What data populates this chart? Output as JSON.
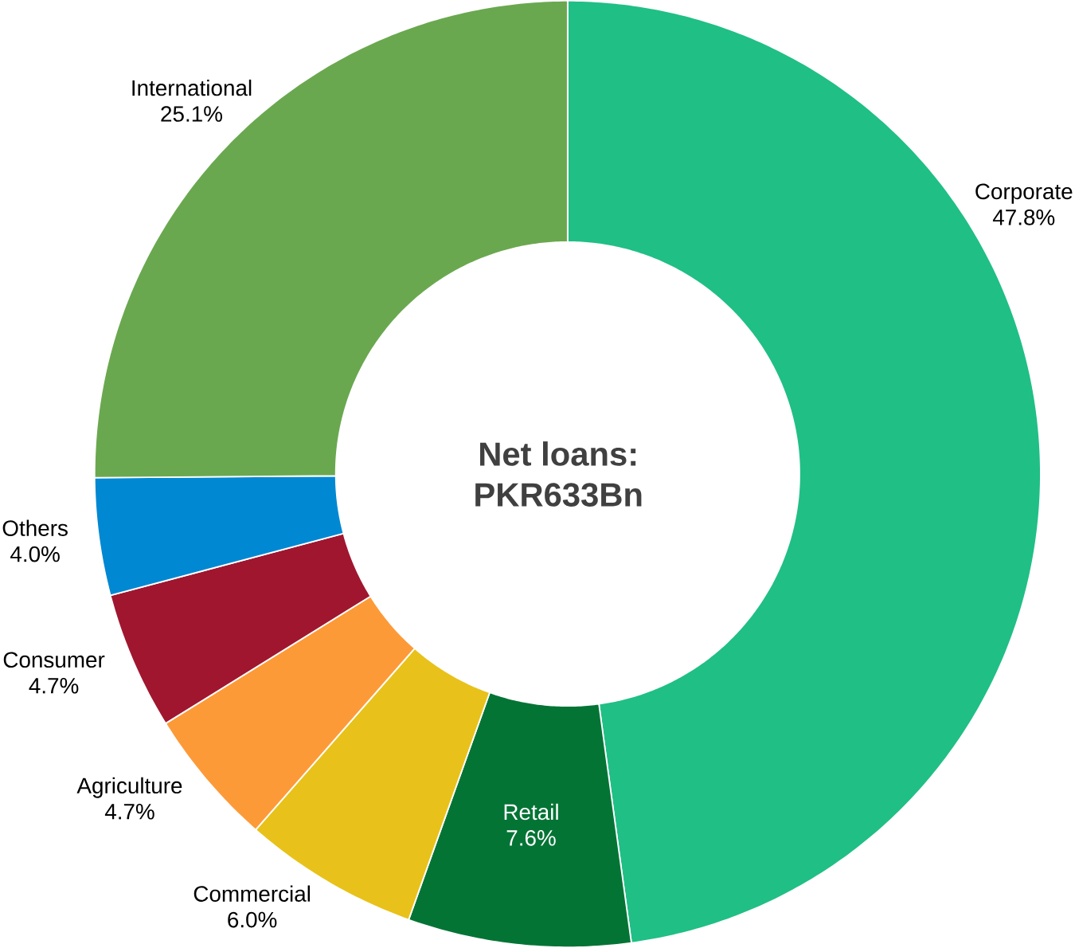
{
  "chart_data": {
    "type": "donut",
    "title": "Net loans:",
    "subtitle": "PKR633Bn",
    "categories": [
      "Corporate",
      "Retail",
      "Commercial",
      "Agriculture",
      "Consumer",
      "Others",
      "International"
    ],
    "values": [
      47.8,
      7.6,
      6.0,
      4.7,
      4.7,
      4.0,
      25.1
    ],
    "colors": [
      "#20bf85",
      "#047435",
      "#e8c21a",
      "#fd9a38",
      "#a0162f",
      "#0088d3",
      "#6aa84f"
    ],
    "value_labels": [
      "47.8%",
      "7.6%",
      "6.0%",
      "4.7%",
      "4.7%",
      "4.0%",
      "25.1%"
    ]
  }
}
